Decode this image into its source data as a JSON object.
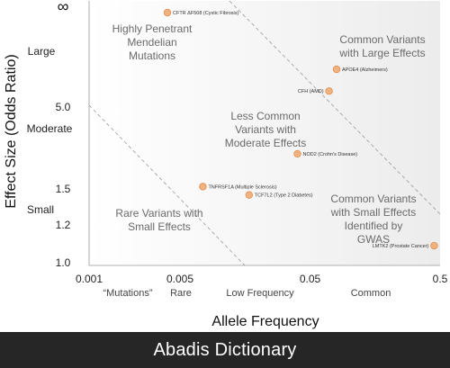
{
  "chart_data": {
    "type": "scatter",
    "title": "",
    "xlabel": "Allele Frequency",
    "ylabel": "Effect Size (Odds Ratio)",
    "x_scale": "log",
    "xlim": [
      0.001,
      0.5
    ],
    "ylim": [
      1.0,
      12
    ],
    "x_ticks": [
      {
        "value": 0.001,
        "label": "0.001"
      },
      {
        "value": 0.005,
        "label": "0.005"
      },
      {
        "value": 0.05,
        "label": "0.05"
      },
      {
        "value": 0.5,
        "label": "0.5"
      }
    ],
    "x_categories": [
      "“Mutations”",
      "Rare",
      "Low Frequency",
      "Common"
    ],
    "y_ticks": [
      {
        "value": 1.0,
        "label": "1.0"
      },
      {
        "value": 1.2,
        "label": "1.2"
      },
      {
        "value": 1.5,
        "label": "1.5"
      },
      {
        "value": 5.0,
        "label": "5.0"
      }
    ],
    "y_top_label": "∞",
    "y_categories": [
      "Large",
      "Moderate",
      "Small"
    ],
    "grid": false,
    "points": [
      {
        "label": "CFTR ΔF508 (Cystic Fibrosis)",
        "x": 0.004,
        "y": 11.5
      },
      {
        "label": "APOE4 (Alzheimers)",
        "x": 0.08,
        "y": 7.6
      },
      {
        "label": "CFH (AMD)",
        "x": 0.07,
        "y": 6.1
      },
      {
        "label": "NOD2 (Crohn's Disease)",
        "x": 0.04,
        "y": 3.0
      },
      {
        "label": "TNFRSF1A (Multiple Sclerosis)",
        "x": 0.0075,
        "y": 1.6
      },
      {
        "label": "TCF7L2 (Type 2 Diabetes)",
        "x": 0.017,
        "y": 1.45
      },
      {
        "label": "LMTK2 (Prostate Cancer)",
        "x": 0.45,
        "y": 1.09
      }
    ],
    "regions": [
      {
        "lines": [
          "Highly Penetrant",
          "Mendelian",
          "Mutations"
        ]
      },
      {
        "lines": [
          "Common Variants",
          "with Large Effects"
        ]
      },
      {
        "lines": [
          "Less Common",
          "Variants with",
          "Moderate Effects"
        ]
      },
      {
        "lines": [
          "Rare Variants with",
          "Small Effects"
        ]
      },
      {
        "lines": [
          "Common Variants",
          "with Small Effects",
          "Identified by",
          "GWAS"
        ]
      }
    ]
  },
  "footer": {
    "text": "Abadis Dictionary"
  }
}
